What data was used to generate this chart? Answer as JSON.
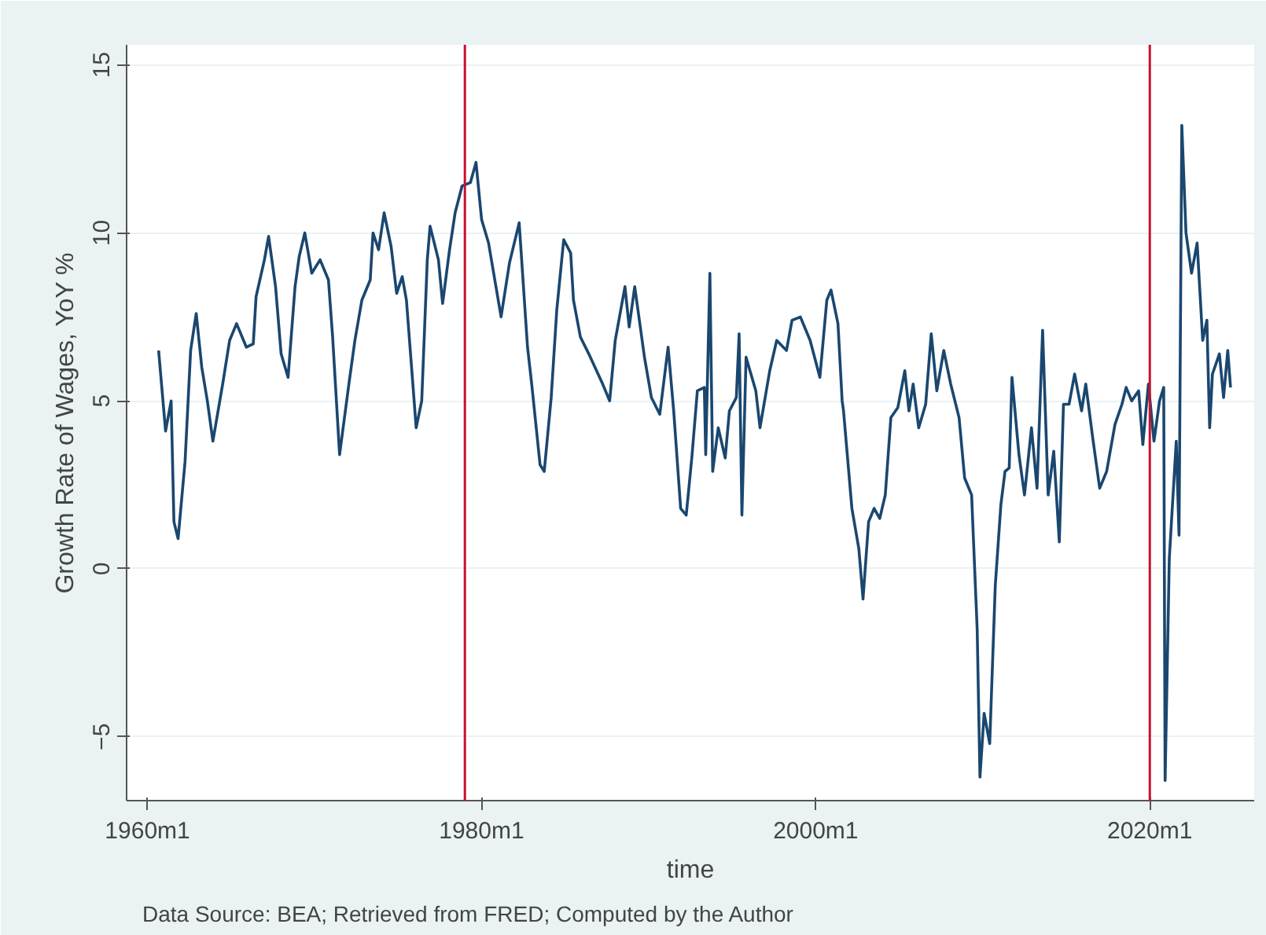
{
  "chart_data": {
    "type": "line",
    "xlabel": "time",
    "ylabel": "Growth Rate of Wages, YoY %",
    "annotations": [
      "Data Source: BEA; Retrieved from FRED; Computed by the Author"
    ],
    "xlim": [
      "1958-10",
      "2026-04"
    ],
    "ylim": [
      -6.9,
      15.6
    ],
    "xticks": [
      {
        "value": "1960-01",
        "label": "1960m1"
      },
      {
        "value": "1980-01",
        "label": "1980m1"
      },
      {
        "value": "2000-01",
        "label": "2000m1"
      },
      {
        "value": "2020-01",
        "label": "2020m1"
      }
    ],
    "yticks": [
      -5,
      0,
      5,
      10,
      15
    ],
    "grid": "y",
    "ref_lines": [
      {
        "axis": "x",
        "value": "1979-01",
        "label": null,
        "color": "#c8102e"
      },
      {
        "axis": "x",
        "value": "2020-01",
        "label": null,
        "color": "#c8102e"
      }
    ],
    "series": [
      {
        "color": "#1a476f",
        "x": [
          "1960-09",
          "1961-02",
          "1961-06",
          "1961-08",
          "1961-11",
          "1962-04",
          "1962-08",
          "1962-12",
          "1963-04",
          "1963-08",
          "1963-12",
          "1964-07",
          "1964-12",
          "1965-05",
          "1965-12",
          "1966-05",
          "1966-07",
          "1967-01",
          "1967-04",
          "1967-09",
          "1968-01",
          "1968-06",
          "1968-11",
          "1969-02",
          "1969-06",
          "1969-11",
          "1970-05",
          "1970-11",
          "1971-02",
          "1971-07",
          "1972-02",
          "1972-06",
          "1972-11",
          "1973-05",
          "1973-07",
          "1973-11",
          "1974-03",
          "1974-08",
          "1974-12",
          "1975-04",
          "1975-07",
          "1975-12",
          "1976-02",
          "1976-06",
          "1976-10",
          "1976-12",
          "1977-06",
          "1977-09",
          "1978-02",
          "1978-06",
          "1978-11",
          "1979-05",
          "1979-09",
          "1980-01",
          "1980-06",
          "1981-03",
          "1981-09",
          "1982-04",
          "1982-10",
          "1983-01",
          "1983-07",
          "1983-10",
          "1984-03",
          "1984-07",
          "1984-12",
          "1985-05",
          "1985-07",
          "1985-12",
          "1986-06",
          "1987-04",
          "1987-09",
          "1988-01",
          "1988-08",
          "1988-11",
          "1989-03",
          "1989-10",
          "1990-03",
          "1990-09",
          "1991-03",
          "1991-07",
          "1991-12",
          "1992-04",
          "1992-08",
          "1992-12",
          "1993-05",
          "1993-06",
          "1993-09",
          "1993-11",
          "1994-03",
          "1994-08",
          "1994-11",
          "1995-04",
          "1995-06",
          "1995-08",
          "1995-11",
          "1996-06",
          "1996-09",
          "1997-04",
          "1997-09",
          "1998-04",
          "1998-08",
          "1999-02",
          "1999-09",
          "2000-04",
          "2000-09",
          "2000-12",
          "2001-05",
          "2001-08",
          "2001-09",
          "2002-03",
          "2002-08",
          "2002-11",
          "2003-03",
          "2003-07",
          "2003-11",
          "2004-03",
          "2004-07",
          "2004-12",
          "2005-05",
          "2005-08",
          "2005-11",
          "2006-03",
          "2006-08",
          "2006-12",
          "2007-04",
          "2007-09",
          "2008-02",
          "2008-08",
          "2008-12",
          "2009-05",
          "2009-09",
          "2009-11",
          "2010-02",
          "2010-06",
          "2010-10",
          "2011-02",
          "2011-05",
          "2011-08",
          "2011-10",
          "2012-03",
          "2012-07",
          "2012-12",
          "2013-04",
          "2013-08",
          "2013-12",
          "2014-04",
          "2014-08",
          "2014-11",
          "2015-03",
          "2015-07",
          "2015-12",
          "2016-03",
          "2016-08",
          "2017-01",
          "2017-06",
          "2017-12",
          "2018-05",
          "2018-08",
          "2018-12",
          "2019-05",
          "2019-08",
          "2019-12",
          "2020-04",
          "2020-08",
          "2020-11",
          "2020-12",
          "2021-03",
          "2021-08",
          "2021-10",
          "2021-12",
          "2022-03",
          "2022-07",
          "2022-11",
          "2023-03",
          "2023-06",
          "2023-08",
          "2023-10",
          "2024-03",
          "2024-06",
          "2024-09",
          "2024-11"
        ],
        "values": [
          6.5,
          4.1,
          5.0,
          1.4,
          0.9,
          3.2,
          6.5,
          7.6,
          6.0,
          5.0,
          3.8,
          5.5,
          6.8,
          7.3,
          6.6,
          6.7,
          8.1,
          9.2,
          9.9,
          8.4,
          6.4,
          5.7,
          8.4,
          9.3,
          10.0,
          8.8,
          9.2,
          8.6,
          6.9,
          3.4,
          5.6,
          6.8,
          8.0,
          8.6,
          10.0,
          9.5,
          10.6,
          9.6,
          8.2,
          8.7,
          8.0,
          5.3,
          4.2,
          5.0,
          9.2,
          10.2,
          9.2,
          7.9,
          9.5,
          10.6,
          11.4,
          11.5,
          12.1,
          10.4,
          9.7,
          7.5,
          9.1,
          10.3,
          6.6,
          5.5,
          3.1,
          2.9,
          5.1,
          7.7,
          9.8,
          9.4,
          8.0,
          6.9,
          6.4,
          5.5,
          5.0,
          6.8,
          8.4,
          7.2,
          8.4,
          6.3,
          5.1,
          4.6,
          6.6,
          4.7,
          1.8,
          1.6,
          3.3,
          5.3,
          5.4,
          3.4,
          8.8,
          2.9,
          4.2,
          3.3,
          4.7,
          5.1,
          7.0,
          1.6,
          6.3,
          5.3,
          4.2,
          5.9,
          6.8,
          6.5,
          7.4,
          7.5,
          6.8,
          5.7,
          8.0,
          8.3,
          7.3,
          5.0,
          4.7,
          1.8,
          0.6,
          -0.9,
          1.4,
          1.8,
          1.5,
          2.2,
          4.5,
          4.8,
          5.9,
          4.7,
          5.5,
          4.2,
          4.9,
          7.0,
          5.3,
          6.5,
          5.5,
          4.5,
          2.7,
          2.2,
          -1.8,
          -6.2,
          -4.3,
          -5.2,
          -0.5,
          1.9,
          2.9,
          3.0,
          5.7,
          3.4,
          2.2,
          4.2,
          2.4,
          7.1,
          2.2,
          3.5,
          0.8,
          4.9,
          4.9,
          5.8,
          4.7,
          5.5,
          3.9,
          2.4,
          2.9,
          4.3,
          4.9,
          5.4,
          5.0,
          5.3,
          3.7,
          5.5,
          3.8,
          5.0,
          5.4,
          -6.3,
          0.3,
          3.8,
          1.0,
          13.2,
          10.0,
          8.8,
          9.7,
          6.8,
          7.4,
          4.2,
          5.8,
          6.4,
          5.1,
          6.5,
          5.4
        ]
      }
    ]
  }
}
